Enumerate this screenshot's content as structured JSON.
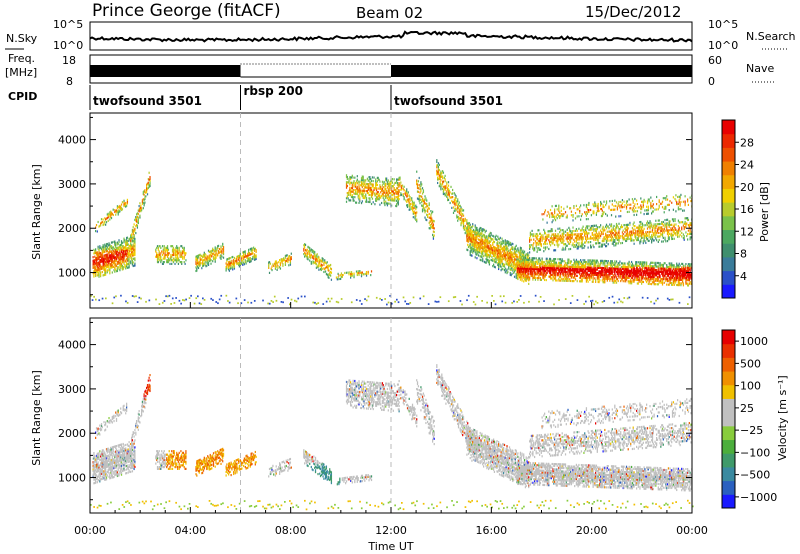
{
  "header": {
    "station": "Prince George (fitACF)",
    "beam": "Beam 02",
    "date": "15/Dec/2012"
  },
  "noise_panel": {
    "left_label": "N.Sky",
    "left_ticks": [
      "10^5",
      "10^0"
    ],
    "right_label": "N.Search",
    "right_ticks": [
      "10^5",
      "10^0"
    ]
  },
  "freq_panel": {
    "left_label_1": "Freq.",
    "left_label_2": "[MHz]",
    "left_ticks": [
      "18",
      "8"
    ],
    "right_label": "Nave",
    "right_ticks": [
      "60",
      "0"
    ]
  },
  "cpid": {
    "label": "CPID",
    "segments": [
      {
        "name": "twofsound 3501",
        "start_h": 0,
        "end_h": 6
      },
      {
        "name": "rbsp 200",
        "start_h": 6,
        "end_h": 12
      },
      {
        "name": "twofsound 3501",
        "start_h": 12,
        "end_h": 24
      }
    ]
  },
  "chart_data": [
    {
      "type": "heatmap",
      "quantity": "power",
      "ylabel": "Slant Range [km]",
      "yticks": [
        1000,
        2000,
        3000,
        4000
      ],
      "ylim": [
        200,
        4600
      ],
      "xlim": [
        0,
        24
      ],
      "colorbar": {
        "label": "Power [dB]",
        "ticks": [
          4,
          8,
          12,
          16,
          20,
          24,
          28
        ],
        "range": [
          0,
          32
        ],
        "colors": [
          "#1a1aff",
          "#2a50c8",
          "#3a7c9a",
          "#3f8f6e",
          "#4ca860",
          "#7ac24a",
          "#b8cc2c",
          "#f0d000",
          "#f2a800",
          "#f08000",
          "#ee5000",
          "#ec2800",
          "#e80000"
        ]
      }
    },
    {
      "type": "heatmap",
      "quantity": "velocity",
      "ylabel": "Slant Range [km]",
      "yticks": [
        1000,
        2000,
        3000,
        4000
      ],
      "ylim": [
        200,
        4600
      ],
      "xlim": [
        0,
        24
      ],
      "colorbar": {
        "label": "Velocity [m s⁻¹]",
        "ticks": [
          "1000",
          "500",
          "100",
          "25",
          "−25",
          "−100",
          "−500",
          "−1000"
        ],
        "colors": [
          "#1a1aff",
          "#2a60c0",
          "#3a8aa0",
          "#3f9a6a",
          "#4cae3c",
          "#88cc3c",
          "#c0c0c0",
          "#c0c0c0",
          "#f0c000",
          "#f09000",
          "#ee6000",
          "#ea3000",
          "#e60000"
        ]
      }
    }
  ],
  "xaxis": {
    "label": "Time UT",
    "ticks": [
      "00:00",
      "04:00",
      "08:00",
      "12:00",
      "16:00",
      "20:00",
      "00:00"
    ]
  }
}
